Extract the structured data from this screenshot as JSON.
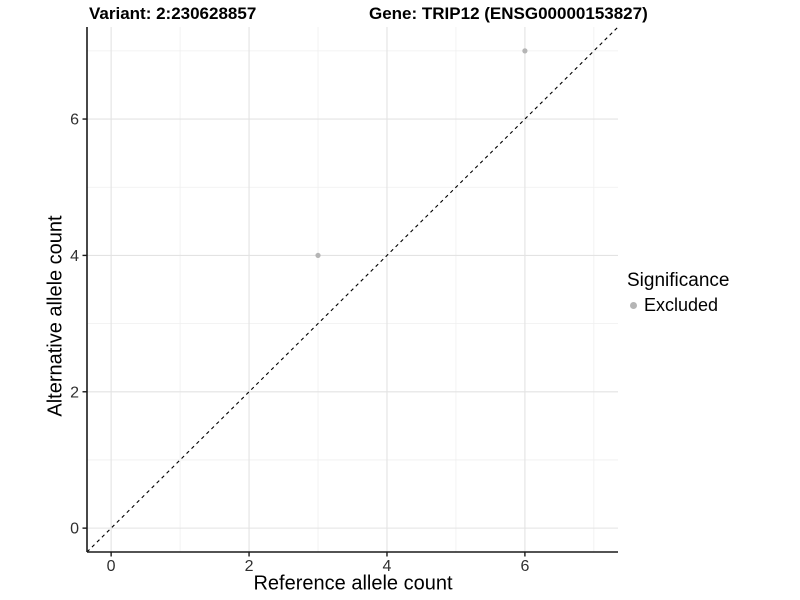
{
  "chart_data": {
    "type": "scatter",
    "titles": {
      "left": "Variant: 2:230628857",
      "right": "Gene: TRIP12 (ENSG00000153827)"
    },
    "xlabel": "Reference allele count",
    "ylabel": "Alternative allele count",
    "xlim": [
      -0.35,
      7.35
    ],
    "ylim": [
      -0.35,
      7.35
    ],
    "xticks": [
      0,
      2,
      4,
      6
    ],
    "yticks": [
      0,
      2,
      4,
      6
    ],
    "xticks_minor": [
      1,
      3,
      5,
      7
    ],
    "yticks_minor": [
      1,
      3,
      5,
      7
    ],
    "grid": {
      "major_color": "#e3e3e3",
      "minor_color": "#efefef"
    },
    "axis_color": "#1a1a1a",
    "tick_label_color": "#303030",
    "identity_line": {
      "slope": 1,
      "intercept": 0,
      "linetype": "dashed",
      "color": "#000000"
    },
    "series": [
      {
        "name": "Excluded",
        "color": "#b5b5b5",
        "points": [
          {
            "x": 3,
            "y": 4
          },
          {
            "x": 6,
            "y": 7
          }
        ]
      }
    ],
    "legend": {
      "title": "Significance",
      "position": "right",
      "entries": [
        {
          "label": "Excluded",
          "color": "#b5b5b5"
        }
      ]
    }
  }
}
